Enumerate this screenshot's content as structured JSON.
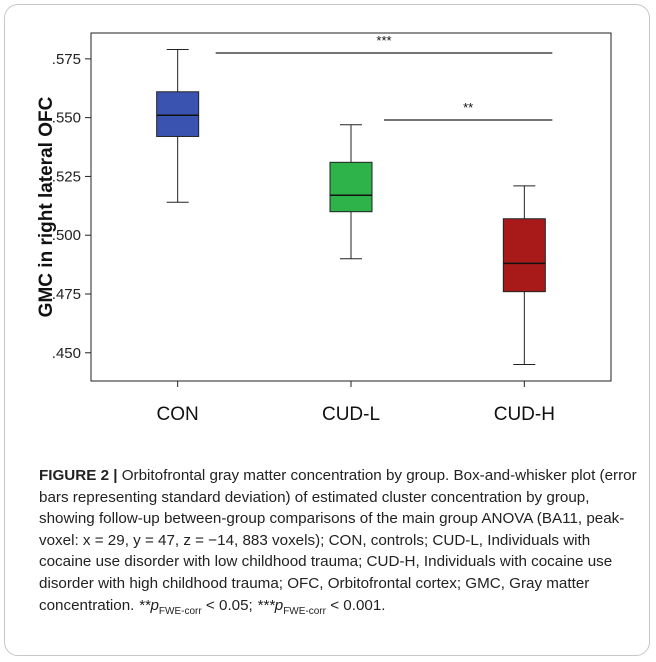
{
  "chart_data": {
    "type": "box",
    "ylabel": "GMC in right lateral OFC",
    "ylim": [
      0.438,
      0.586
    ],
    "yticks": [
      0.45,
      0.475,
      0.5,
      0.525,
      0.55,
      0.575
    ],
    "ytick_labels": [
      ".450",
      ".475",
      ".500",
      ".525",
      ".550",
      ".575"
    ],
    "categories": [
      "CON",
      "CUD-L",
      "CUD-H"
    ],
    "boxes": [
      {
        "category": "CON",
        "whisker_low": 0.514,
        "q1": 0.542,
        "median": 0.551,
        "q3": 0.561,
        "whisker_high": 0.579,
        "color": "#3b53b0"
      },
      {
        "category": "CUD-L",
        "whisker_low": 0.49,
        "q1": 0.51,
        "median": 0.517,
        "q3": 0.531,
        "whisker_high": 0.547,
        "color": "#2eb24a"
      },
      {
        "category": "CUD-H",
        "whisker_low": 0.445,
        "q1": 0.476,
        "median": 0.488,
        "q3": 0.507,
        "whisker_high": 0.521,
        "color": "#a81a1a"
      }
    ],
    "significance": [
      {
        "from": "CON",
        "to": "CUD-H",
        "y": 0.5775,
        "label": "***"
      },
      {
        "from": "CUD-L",
        "to": "CUD-H",
        "y": 0.549,
        "label": "**"
      }
    ]
  },
  "caption": {
    "figure_label": "FIGURE 2 |",
    "title": " Orbitofrontal gray matter concentration by group.",
    "body": "Box-and-whisker plot (error bars representing standard deviation) of estimated cluster concentration by group, showing follow-up between-group comparisons of the main group ANOVA (BA11, peak-voxel: x = 29, y = 47, z = −14, 883 voxels); CON, controls; CUD-L, Individuals with cocaine use disorder with low childhood trauma; CUD-H, Individuals with cocaine use disorder with high childhood trauma; OFC, Orbitofrontal cortex; GMC, Gray matter concentration. ",
    "stat_prefix_2": "**p",
    "stat_sub": "FWE-corr",
    "stat_value_2": " < 0.05; ",
    "stat_prefix_3": "***p",
    "stat_value_3": " < 0.001."
  }
}
